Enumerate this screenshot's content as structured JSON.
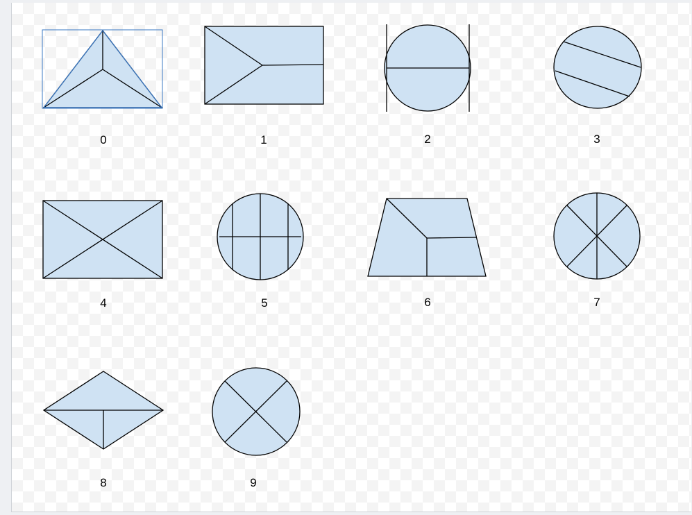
{
  "shapes": [
    {
      "label": "0",
      "kind": "triangle-split",
      "selected": true
    },
    {
      "label": "1",
      "kind": "rect-arrow-split"
    },
    {
      "label": "2",
      "kind": "circle-halved-with-bars"
    },
    {
      "label": "3",
      "kind": "circle-diagonal-thirds"
    },
    {
      "label": "4",
      "kind": "rect-x"
    },
    {
      "label": "5",
      "kind": "circle-grid"
    },
    {
      "label": "6",
      "kind": "trapezoid-split"
    },
    {
      "label": "7",
      "kind": "circle-six-sectors"
    },
    {
      "label": "8",
      "kind": "rhombus-split"
    },
    {
      "label": "9",
      "kind": "circle-x"
    }
  ],
  "colors": {
    "shape_fill": "#cfe2f3",
    "stroke": "#000000",
    "selection": "#3a78c3"
  }
}
